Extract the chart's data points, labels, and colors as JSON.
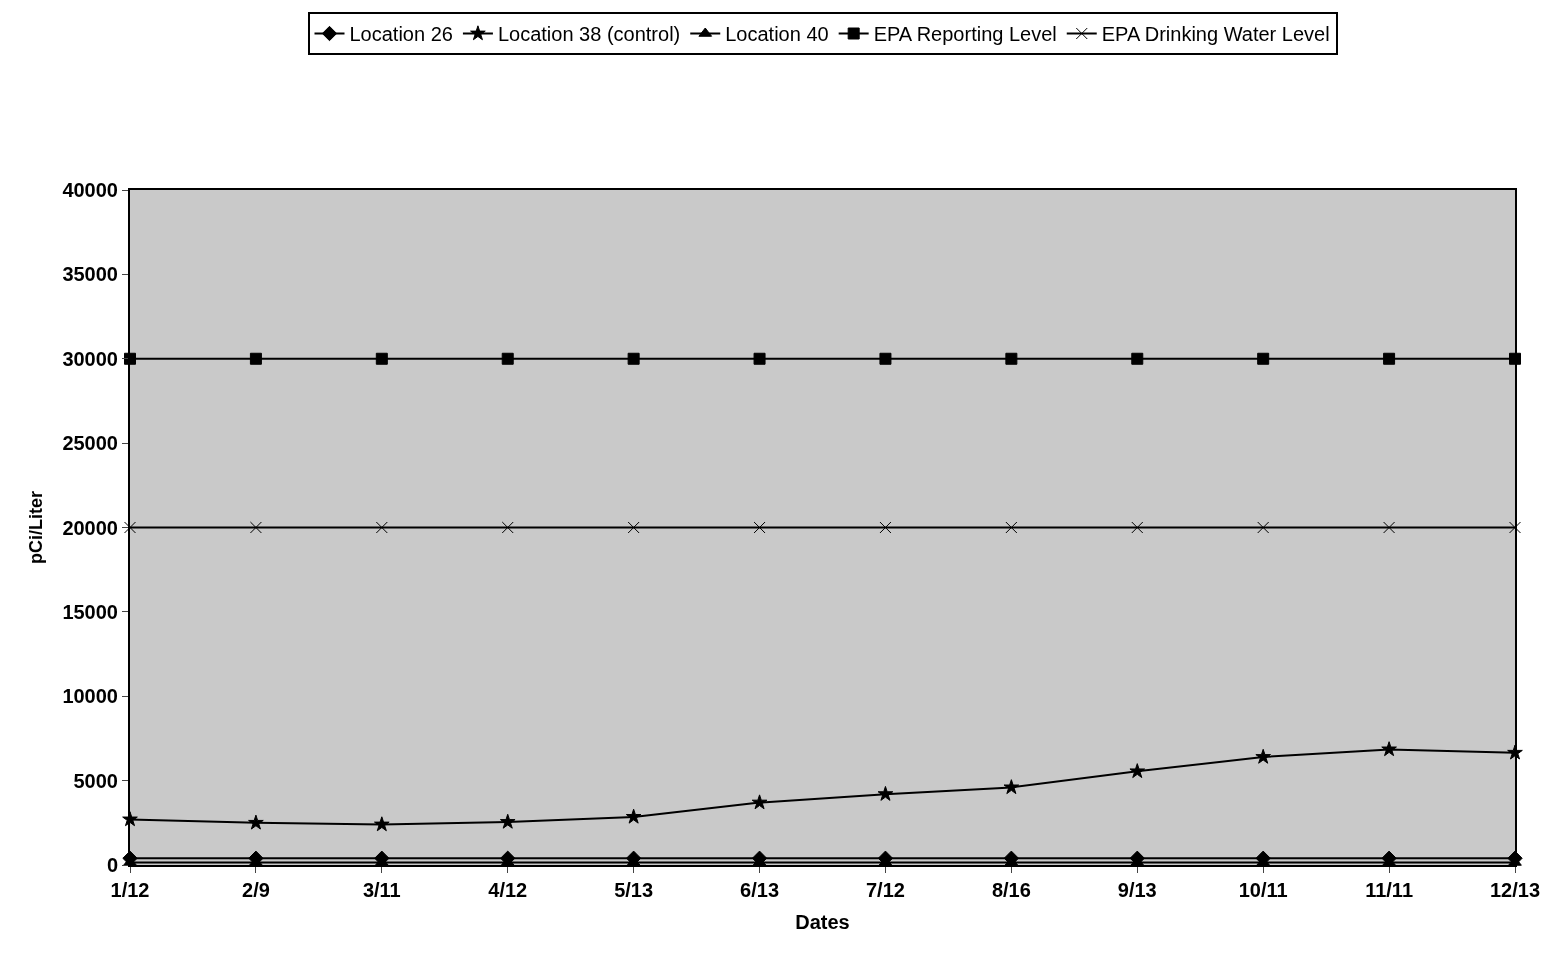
{
  "chart_data": {
    "type": "line",
    "xlabel": "Dates",
    "ylabel": "pCi/Liter",
    "categories": [
      "1/12",
      "2/9",
      "3/11",
      "4/12",
      "5/13",
      "6/13",
      "7/12",
      "8/16",
      "9/13",
      "10/11",
      "11/11",
      "12/13"
    ],
    "series": [
      {
        "name": "Location 26",
        "color": "#000000",
        "marker": "diamond",
        "values": [
          400,
          400,
          400,
          400,
          400,
          400,
          400,
          400,
          400,
          400,
          400,
          400
        ]
      },
      {
        "name": "Location 38 (control)",
        "color": "#000000",
        "marker": "star",
        "values": [
          2700,
          2500,
          2400,
          2550,
          2850,
          3700,
          4200,
          4600,
          5550,
          6400,
          6850,
          6650
        ]
      },
      {
        "name": "Location 40",
        "color": "#000000",
        "marker": "triangle",
        "values": [
          150,
          150,
          150,
          150,
          150,
          150,
          150,
          150,
          150,
          150,
          150,
          150
        ]
      },
      {
        "name": "EPA Reporting Level",
        "color": "#000000",
        "marker": "square",
        "values": [
          30000,
          30000,
          30000,
          30000,
          30000,
          30000,
          30000,
          30000,
          30000,
          30000,
          30000,
          30000
        ]
      },
      {
        "name": "EPA Drinking Water Level",
        "color": "#000000",
        "marker": "cross",
        "values": [
          20000,
          20000,
          20000,
          20000,
          20000,
          20000,
          20000,
          20000,
          20000,
          20000,
          20000,
          20000
        ]
      }
    ],
    "ylim": [
      0,
      40000
    ],
    "yticks": [
      0,
      5000,
      10000,
      15000,
      20000,
      25000,
      30000,
      35000,
      40000
    ],
    "grid": false,
    "legend": "top",
    "line_style": "solid"
  }
}
